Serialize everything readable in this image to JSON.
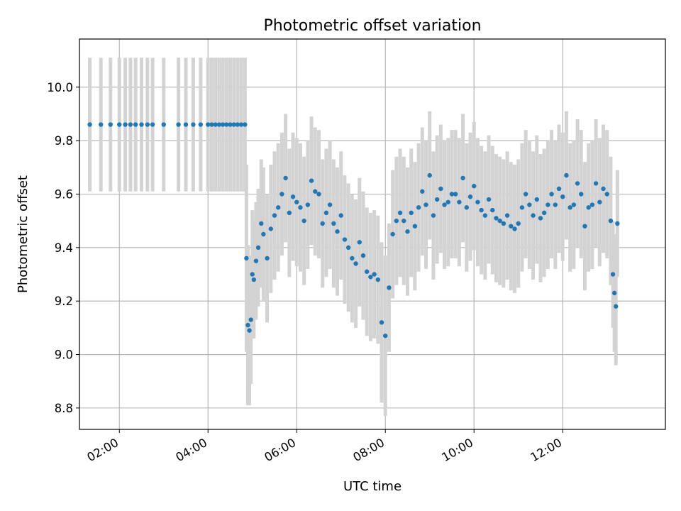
{
  "chart_data": {
    "type": "scatter",
    "title": "Photometric offset variation",
    "xlabel": "UTC time",
    "ylabel": "Photometric offset",
    "xlim": [
      "01:06",
      "14:19"
    ],
    "ylim": [
      8.72,
      10.18
    ],
    "x_ticks": [
      "02:00",
      "04:00",
      "06:00",
      "08:00",
      "10:00",
      "12:00"
    ],
    "y_ticks": [
      "8.8",
      "9.0",
      "9.2",
      "9.4",
      "9.6",
      "9.8",
      "10.0"
    ],
    "y_tick_values": [
      8.8,
      9.0,
      9.2,
      9.4,
      9.6,
      9.8,
      10.0
    ],
    "grid": true,
    "marker_color": "#1f77b4",
    "errorbar_color": "#d3d3d3",
    "series": [
      {
        "x": [
          "01:20",
          "01:35",
          "01:48",
          "02:00",
          "02:08",
          "02:15",
          "02:22",
          "02:30",
          "02:38",
          "02:45",
          "03:00",
          "03:20",
          "03:30",
          "03:40",
          "03:50",
          "04:00",
          "04:05",
          "04:10",
          "04:15",
          "04:20",
          "04:25",
          "04:30",
          "04:35",
          "04:40",
          "04:45",
          "04:50"
        ],
        "y": [
          9.86,
          9.86,
          9.86,
          9.86,
          9.86,
          9.86,
          9.86,
          9.86,
          9.86,
          9.86,
          9.86,
          9.86,
          9.86,
          9.86,
          9.86,
          9.86,
          9.86,
          9.86,
          9.86,
          9.86,
          9.86,
          9.86,
          9.86,
          9.86,
          9.86,
          9.86
        ],
        "yerr": [
          0.25,
          0.25,
          0.25,
          0.25,
          0.25,
          0.25,
          0.25,
          0.25,
          0.25,
          0.25,
          0.25,
          0.25,
          0.25,
          0.25,
          0.25,
          0.25,
          0.25,
          0.25,
          0.25,
          0.25,
          0.25,
          0.25,
          0.25,
          0.25,
          0.25,
          0.25
        ]
      },
      {
        "x": [
          "04:52",
          "04:54",
          "04:56",
          "04:58",
          "05:00",
          "05:02",
          "05:05",
          "05:08",
          "05:12",
          "05:15",
          "05:20",
          "05:25",
          "05:30",
          "05:35",
          "05:40",
          "05:45",
          "05:50",
          "05:55",
          "06:00",
          "06:05",
          "06:10",
          "06:15",
          "06:20",
          "06:25",
          "06:30",
          "06:35",
          "06:40",
          "06:45",
          "06:50",
          "06:55",
          "07:00",
          "07:05",
          "07:10",
          "07:15",
          "07:20",
          "07:25",
          "07:30",
          "07:35",
          "07:40",
          "07:45",
          "07:50",
          "07:55",
          "08:00",
          "08:05",
          "08:10",
          "08:15",
          "08:20",
          "08:25",
          "08:30",
          "08:35",
          "08:40",
          "08:45",
          "08:50",
          "08:55",
          "09:00",
          "09:05",
          "09:10",
          "09:15",
          "09:20",
          "09:25",
          "09:30",
          "09:35",
          "09:40",
          "09:45",
          "09:50",
          "09:55",
          "10:00",
          "10:05",
          "10:10",
          "10:15",
          "10:20",
          "10:25",
          "10:30",
          "10:35",
          "10:40",
          "10:45",
          "10:50",
          "10:55",
          "11:00",
          "11:05",
          "11:10",
          "11:15",
          "11:20",
          "11:25",
          "11:30",
          "11:35",
          "11:40",
          "11:45",
          "11:50",
          "11:55",
          "12:00",
          "12:05",
          "12:10",
          "12:15",
          "12:20",
          "12:25",
          "12:30",
          "12:35",
          "12:40",
          "12:45",
          "12:50",
          "12:55",
          "13:00",
          "13:05",
          "13:08",
          "13:10",
          "13:12",
          "13:14"
        ],
        "y": [
          9.36,
          9.11,
          9.09,
          9.13,
          9.3,
          9.28,
          9.35,
          9.4,
          9.49,
          9.45,
          9.36,
          9.47,
          9.52,
          9.55,
          9.6,
          9.66,
          9.53,
          9.59,
          9.57,
          9.55,
          9.5,
          9.56,
          9.65,
          9.61,
          9.6,
          9.49,
          9.53,
          9.56,
          9.49,
          9.46,
          9.52,
          9.43,
          9.4,
          9.36,
          9.34,
          9.42,
          9.37,
          9.31,
          9.29,
          9.3,
          9.28,
          9.12,
          9.07,
          9.25,
          9.45,
          9.5,
          9.53,
          9.5,
          9.46,
          9.53,
          9.48,
          9.55,
          9.61,
          9.56,
          9.67,
          9.52,
          9.58,
          9.62,
          9.56,
          9.57,
          9.6,
          9.6,
          9.57,
          9.66,
          9.55,
          9.59,
          9.63,
          9.57,
          9.54,
          9.52,
          9.58,
          9.54,
          9.51,
          9.5,
          9.49,
          9.52,
          9.48,
          9.47,
          9.49,
          9.55,
          9.6,
          9.56,
          9.52,
          9.58,
          9.51,
          9.53,
          9.56,
          9.6,
          9.56,
          9.62,
          9.59,
          9.67,
          9.55,
          9.56,
          9.64,
          9.6,
          9.48,
          9.55,
          9.56,
          9.64,
          9.57,
          9.62,
          9.6,
          9.5,
          9.3,
          9.23,
          9.18,
          9.49
        ],
        "yerr": [
          0.35,
          0.3,
          0.28,
          0.24,
          0.24,
          0.22,
          0.22,
          0.22,
          0.24,
          0.25,
          0.24,
          0.24,
          0.24,
          0.24,
          0.23,
          0.24,
          0.24,
          0.24,
          0.24,
          0.24,
          0.24,
          0.24,
          0.24,
          0.24,
          0.24,
          0.24,
          0.24,
          0.24,
          0.24,
          0.24,
          0.24,
          0.24,
          0.24,
          0.24,
          0.24,
          0.24,
          0.24,
          0.24,
          0.24,
          0.24,
          0.24,
          0.3,
          0.3,
          0.24,
          0.24,
          0.24,
          0.24,
          0.24,
          0.24,
          0.24,
          0.24,
          0.24,
          0.24,
          0.24,
          0.24,
          0.24,
          0.24,
          0.24,
          0.24,
          0.24,
          0.24,
          0.24,
          0.24,
          0.24,
          0.24,
          0.24,
          0.24,
          0.24,
          0.24,
          0.24,
          0.24,
          0.24,
          0.24,
          0.24,
          0.24,
          0.24,
          0.24,
          0.24,
          0.24,
          0.24,
          0.24,
          0.24,
          0.24,
          0.24,
          0.24,
          0.24,
          0.24,
          0.24,
          0.24,
          0.24,
          0.24,
          0.24,
          0.24,
          0.24,
          0.24,
          0.24,
          0.24,
          0.24,
          0.24,
          0.24,
          0.24,
          0.24,
          0.24,
          0.24,
          0.2,
          0.22,
          0.22,
          0.2
        ]
      }
    ]
  }
}
